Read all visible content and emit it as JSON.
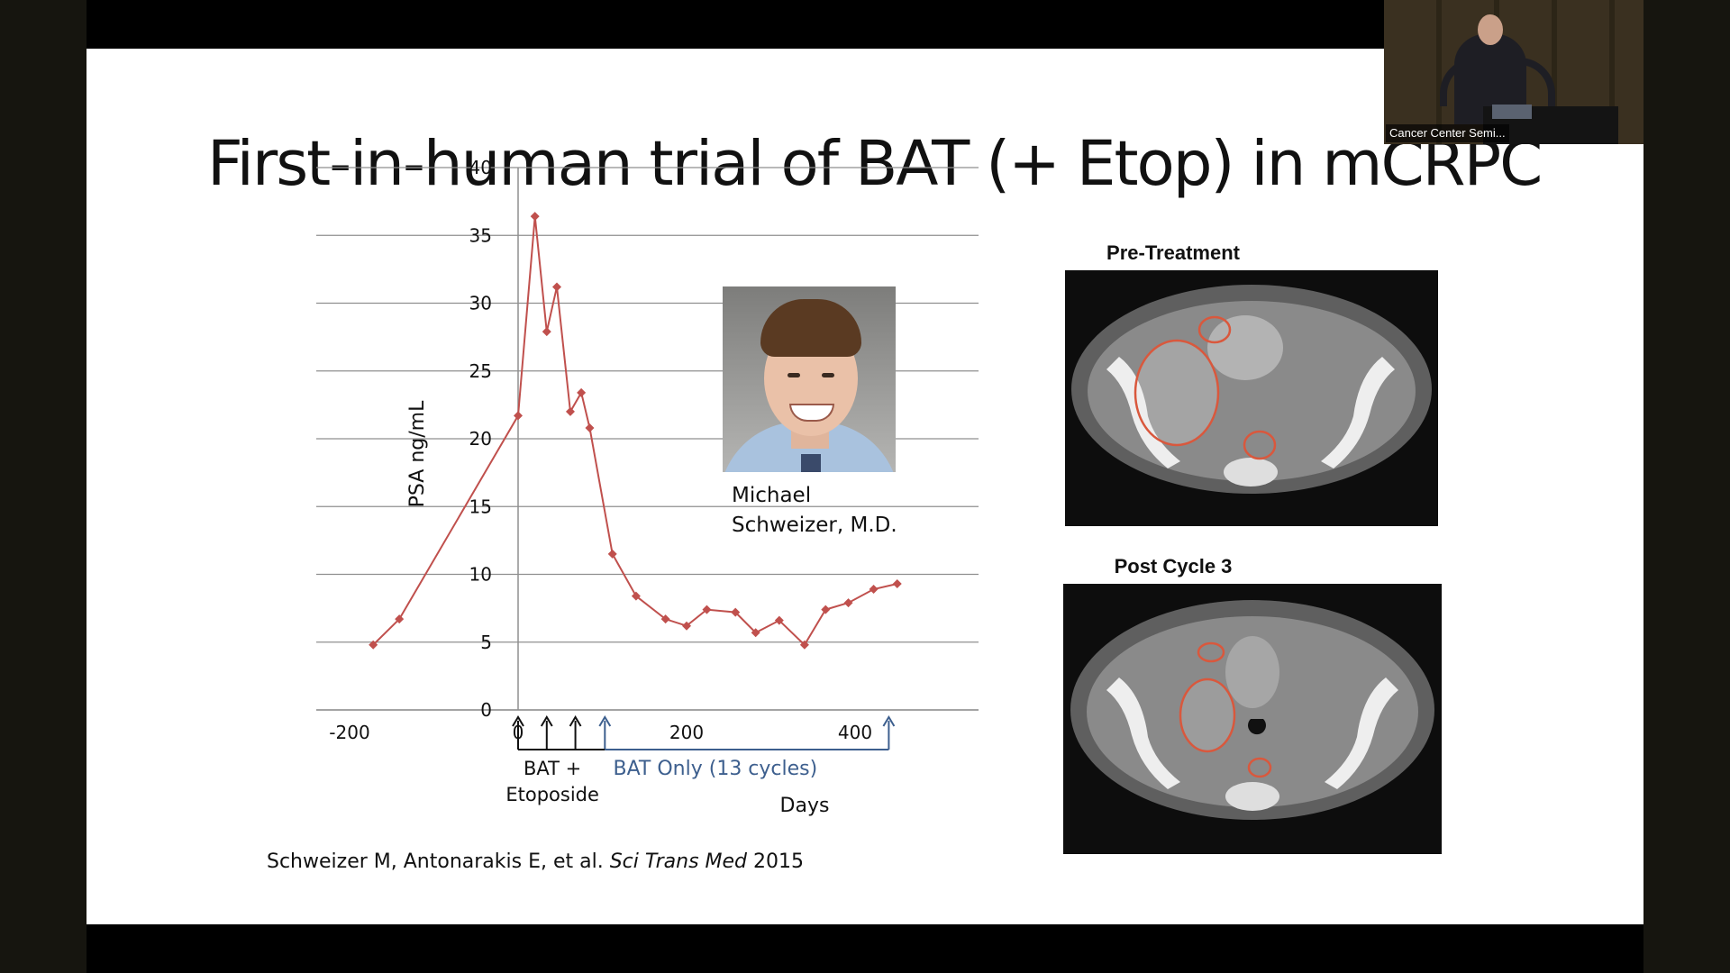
{
  "slide": {
    "title": "First-in-human trial of BAT (+ Etop) in mCRPC",
    "person": {
      "name_line1": "Michael",
      "name_line2": "Schweizer, M.D."
    },
    "scans": [
      {
        "caption": "Pre-Treatment"
      },
      {
        "caption": "Post Cycle 3"
      }
    ],
    "citation": {
      "authors": "Schweizer M, Antonarakis E, et al. ",
      "journal": "Sci Trans Med",
      "year": " 2015"
    }
  },
  "video": {
    "label": "Cancer Center Semi..."
  },
  "colors": {
    "series": "#c0504d",
    "phase_only": "#3d5f8e",
    "grid": "#8f8f8f"
  },
  "chart_data": {
    "type": "line",
    "title": "",
    "xlabel": "Days",
    "ylabel": "PSA ng/mL",
    "xlim": [
      -200,
      450
    ],
    "ylim": [
      0,
      40
    ],
    "x_ticks": [
      "-200",
      "0",
      "200",
      "400"
    ],
    "y_ticks": [
      "0",
      "5",
      "10",
      "15",
      "20",
      "25",
      "30",
      "35",
      "40"
    ],
    "grid": "horizontal",
    "series": [
      {
        "x": [
          -172,
          -141,
          0,
          20,
          34,
          46,
          62,
          75,
          85,
          112,
          140,
          175,
          200,
          224,
          258,
          282,
          310,
          340,
          365,
          392,
          422,
          450
        ],
        "y": [
          4.8,
          6.7,
          21.7,
          36.4,
          27.9,
          31.2,
          22.0,
          23.4,
          20.8,
          11.5,
          8.4,
          6.7,
          6.2,
          7.4,
          7.2,
          5.7,
          6.6,
          4.8,
          7.4,
          7.9,
          8.9,
          9.3
        ]
      }
    ],
    "dosing_arrows": [
      {
        "x": 0,
        "phase": "bat_etoposide"
      },
      {
        "x": 34,
        "phase": "bat_etoposide"
      },
      {
        "x": 68,
        "phase": "bat_etoposide"
      },
      {
        "x": 103,
        "phase": "bat_only"
      },
      {
        "x": 440,
        "phase": "bat_only"
      }
    ],
    "phases": [
      {
        "id": "bat_etoposide",
        "label_line1": "BAT +",
        "label_line2": "Etoposide",
        "x_start": 0,
        "x_end": 103
      },
      {
        "id": "bat_only",
        "label": "BAT Only (13 cycles)",
        "x_start": 103,
        "x_end": 440
      }
    ]
  }
}
